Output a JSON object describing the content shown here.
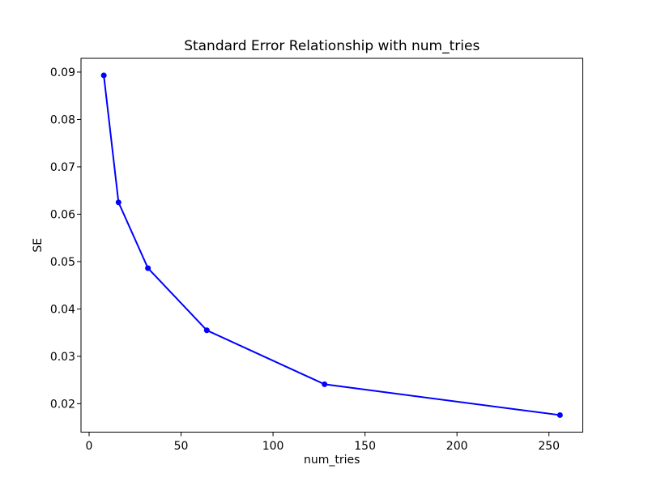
{
  "chart_data": {
    "type": "line",
    "title": "Standard Error Relationship with num_tries",
    "xlabel": "num_tries",
    "ylabel": "SE",
    "x": [
      8,
      16,
      32,
      64,
      128,
      256
    ],
    "y": [
      0.0893,
      0.0625,
      0.0486,
      0.0355,
      0.0241,
      0.0176
    ],
    "xlim": [
      -4.4,
      268.4
    ],
    "ylim": [
      0.014,
      0.0929
    ],
    "xticks": [
      0,
      50,
      100,
      150,
      200,
      250
    ],
    "yticks": [
      0.02,
      0.03,
      0.04,
      0.05,
      0.06,
      0.07,
      0.08,
      0.09
    ],
    "ytick_decimals": 2,
    "line_color": "#0000ff",
    "marker": "circle",
    "marker_size": 3.5,
    "line_width": 2,
    "grid": false,
    "background": "#ffffff",
    "spine_color": "#000000"
  }
}
